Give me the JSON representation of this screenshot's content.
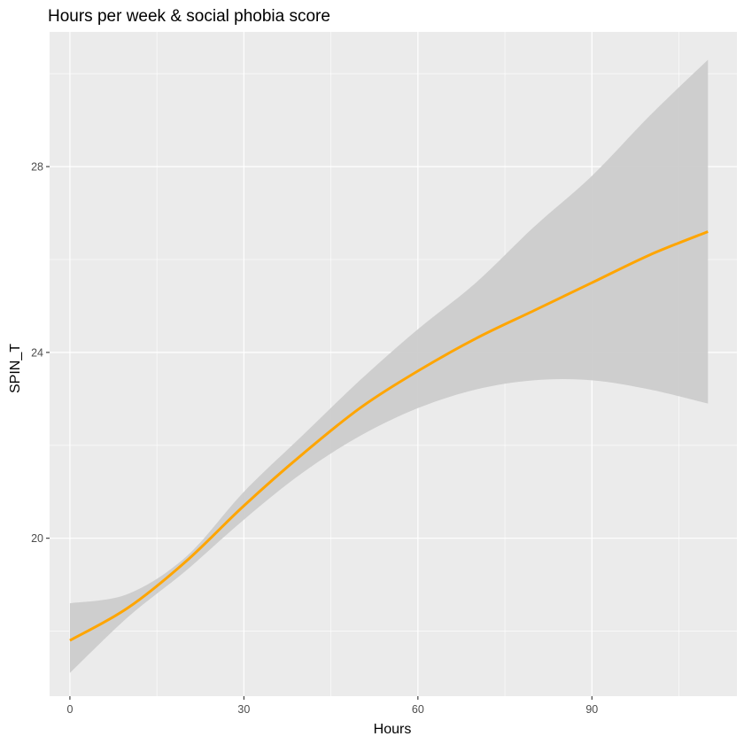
{
  "chart_data": {
    "type": "line",
    "title": "Hours per week & social phobia score",
    "xlabel": "Hours",
    "ylabel": "SPIN_T",
    "xlim": [
      -3.5,
      115
    ],
    "ylim": [
      16.6,
      30.9
    ],
    "x_ticks": [
      0,
      30,
      60,
      90
    ],
    "x_tick_labels": [
      "0",
      "30",
      "60",
      "90"
    ],
    "y_ticks": [
      20,
      24,
      28
    ],
    "y_tick_labels": [
      "20",
      "24",
      "28"
    ],
    "grid": true,
    "series": [
      {
        "color": "#FFA500",
        "x": [
          0,
          10,
          20,
          30,
          40,
          50,
          60,
          70,
          80,
          90,
          100,
          110
        ],
        "y": [
          17.8,
          18.5,
          19.5,
          20.7,
          21.8,
          22.8,
          23.6,
          24.3,
          24.9,
          25.5,
          26.1,
          26.6
        ],
        "ci_lower": [
          17.1,
          18.3,
          19.3,
          20.4,
          21.4,
          22.2,
          22.8,
          23.2,
          23.4,
          23.4,
          23.2,
          22.9
        ],
        "ci_upper": [
          18.6,
          18.8,
          19.6,
          21.0,
          22.2,
          23.4,
          24.5,
          25.5,
          26.7,
          27.8,
          29.1,
          30.3
        ]
      }
    ],
    "colors": {
      "panel_background": "#EBEBEB",
      "grid": "#FFFFFF",
      "ribbon": "#CCCCCC",
      "line": "#FFA500"
    }
  }
}
